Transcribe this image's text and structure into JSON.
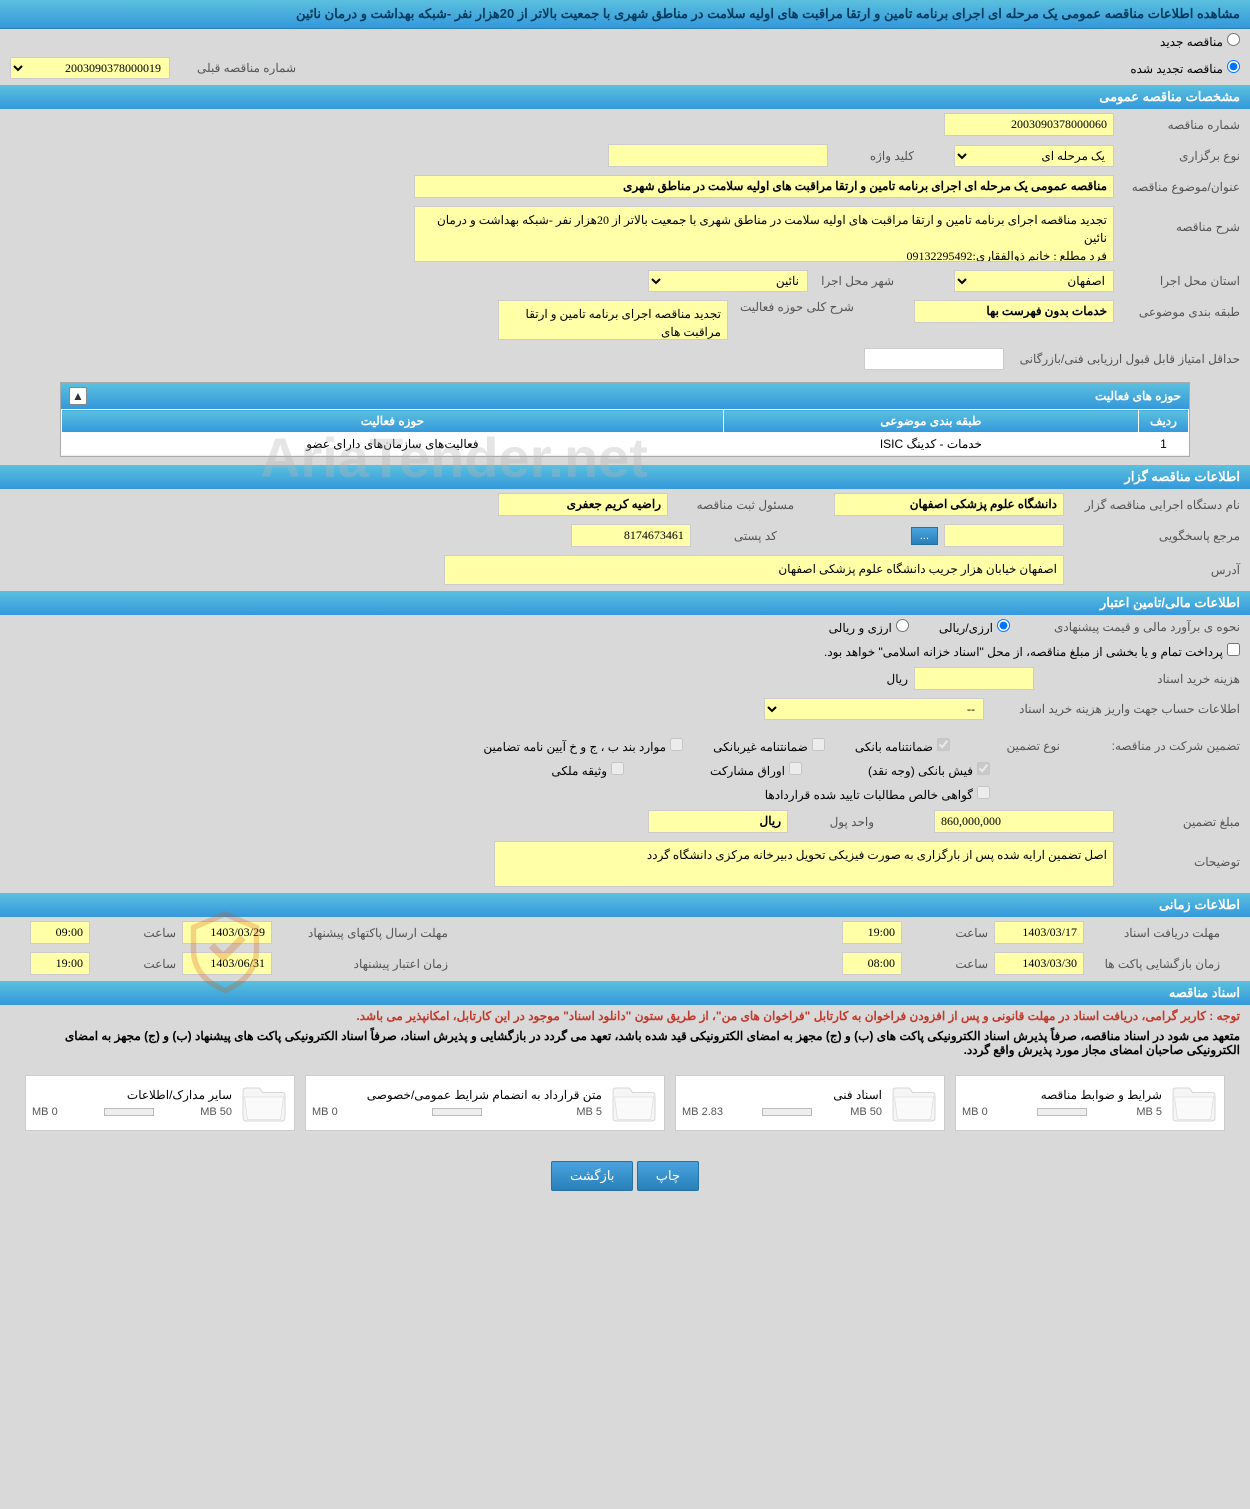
{
  "header_title": "مشاهده اطلاعات مناقصه عمومی یک مرحله ای اجرای برنامه تامین و ارتقا مراقبت های اولیه سلامت در مناطق شهری با جمعیت بالاتر از 20هزار نفر -شبکه بهداشت و درمان نائین",
  "repeat": {
    "new_label": "مناقصه جدید",
    "renewed_label": "مناقصه تجدید شده",
    "prev_label": "شماره مناقصه قبلی",
    "prev_value": "2003090378000019"
  },
  "sections": {
    "general": "مشخصات مناقصه عمومی",
    "tenderer": "اطلاعات مناقصه گزار",
    "finance": "اطلاعات مالی/تامین اعتبار",
    "time": "اطلاعات زمانی",
    "docs": "اسناد مناقصه"
  },
  "general": {
    "tender_no_label": "شماره مناقصه",
    "tender_no": "2003090378000060",
    "hold_type_label": "نوع برگزاری",
    "hold_type": "یک مرحله ای",
    "keyword_label": "کلید واژه",
    "keyword": "",
    "subject_label": "عنوان/موضوع مناقصه",
    "subject": "مناقصه عمومی یک مرحله ای اجرای برنامه تامین و ارتقا مراقبت های اولیه سلامت در مناطق شهری",
    "desc_label": "شرح مناقصه",
    "desc": "تجدید مناقصه اجرای برنامه تامین و ارتقا مراقبت های اولیه سلامت در مناطق شهری با جمعیت بالاتر از 20هزار نفر -شبکه بهداشت و درمان  نائین\nفرد مطلع : خانم ذوالفقاری:09132295492",
    "province_label": "استان محل اجرا",
    "province": "اصفهان",
    "city_label": "شهر محل اجرا",
    "city": "نائین",
    "category_label": "طبقه بندی موضوعی",
    "category": "خدمات بدون فهرست بها",
    "activity_desc_label": "شرح کلی حوزه فعالیت",
    "activity_desc": "تجدید مناقصه اجرای برنامه تامین و ارتقا مراقبت های",
    "min_score_label": "حداقل امتیاز قابل قبول ارزیابی فنی/بازرگانی",
    "min_score": ""
  },
  "activity_table": {
    "title": "حوزه های فعالیت",
    "cols": {
      "row": "ردیف",
      "cat": "طبقه بندی موضوعی",
      "field": "حوزه فعالیت"
    },
    "rows": [
      {
        "n": "1",
        "cat": "خدمات - کدینگ ISIC",
        "field": "فعالیت‌های سازمان‌های دارای عضو"
      }
    ]
  },
  "tenderer": {
    "org_label": "نام دستگاه اجرایی مناقصه گزار",
    "org": "دانشگاه علوم پزشکی اصفهان",
    "resp_person_label": "مسئول ثبت مناقصه",
    "resp_person": "راضیه کریم جعفری",
    "phone_label": "مرجع پاسخگویی",
    "phone": "",
    "postal_label": "کد پستی",
    "postal": "8174673461",
    "address_label": "آدرس",
    "address": "اصفهان خیابان هزار جریب دانشگاه علوم پزشکی اصفهان"
  },
  "finance": {
    "est_method_label": "نحوه ی برآورد مالی و قیمت پیشنهادی",
    "opt_rial": "ارزی/ریالی",
    "opt_arz": "ارزی و ریالی",
    "treasury_label": "پرداخت تمام و یا بخشی از مبلغ مناقصه، از محل \"اسناد خزانه اسلامی\" خواهد بود.",
    "doc_cost_label": "هزینه خرید اسناد",
    "doc_cost": "",
    "unit_rial": "ریال",
    "acct_label": "اطلاعات حساب جهت واریز هزینه خرید اسناد",
    "acct": "--",
    "guarantee_label": "تضمین شرکت در مناقصه:",
    "guarantee_type_label": "نوع تضمین",
    "g_bank": "ضمانتنامه بانکی",
    "g_nonbank": "ضمانتنامه غیربانکی",
    "g_bond": "موارد بند ب ، ج و خ آیین نامه تضامین",
    "g_cash": "فیش بانکی (وجه نقد)",
    "g_stock": "اوراق مشارکت",
    "g_property": "وثیقه ملکی",
    "g_clearance": "گواهی خالص مطالبات تایید شده قراردادها",
    "guarantee_amount_label": "مبلغ تضمین",
    "guarantee_amount": "860,000,000",
    "currency_label": "واحد پول",
    "currency": "ریال",
    "remarks_label": "توضیحات",
    "remarks": "اصل تضمین ارایه شده پس از بارگزاری به صورت فیزیکی تحویل دبیرخانه مرکزی دانشگاه گردد"
  },
  "time": {
    "receive_label": "مهلت دریافت اسناد",
    "receive_date": "1403/03/17",
    "receive_hour_label": "ساعت",
    "receive_hour": "19:00",
    "send_label": "مهلت ارسال پاکتهای پیشنهاد",
    "send_date": "1403/03/29",
    "send_hour_label": "ساعت",
    "send_hour": "09:00",
    "open_label": "زمان بازگشایی پاکت ها",
    "open_date": "1403/03/30",
    "open_hour_label": "ساعت",
    "open_hour": "08:00",
    "valid_label": "زمان اعتبار پیشنهاد",
    "valid_date": "1403/06/31",
    "valid_hour_label": "ساعت",
    "valid_hour": "19:00"
  },
  "docs": {
    "note1": "توجه : کاربر گرامی، دریافت اسناد در مهلت قانونی و پس از افزودن فراخوان به کارتابل \"فراخوان های من\"، از طریق ستون \"دانلود اسناد\" موجود در این کارتابل، امکانپذیر می باشد.",
    "note2": "متعهد می شود در اسناد مناقصه، صرفاً پذیرش اسناد الکترونیکی پاکت های (ب) و (ج) مجهز به امضای الکترونیکی قید شده باشد، تعهد می گردد در بازگشایی و پذیرش اسناد، صرفاً اسناد الکترونیکی پاکت های پیشنهاد (ب) و (ج) مجهز به امضای الکترونیکی صاحبان امضای مجاز مورد پذیرش واقع گردد.",
    "files": [
      {
        "title": "شرایط و ضوابط مناقصه",
        "used": "0 MB",
        "cap": "5 MB",
        "fill": 0
      },
      {
        "title": "اسناد فنی",
        "used": "2.83 MB",
        "cap": "50 MB",
        "fill": 6
      },
      {
        "title": "متن قرارداد به انضمام شرایط عمومی/خصوصی",
        "used": "0 MB",
        "cap": "5 MB",
        "fill": 0
      },
      {
        "title": "سایر مدارک/اطلاعات",
        "used": "0 MB",
        "cap": "50 MB",
        "fill": 0
      }
    ]
  },
  "buttons": {
    "print": "چاپ",
    "back": "بازگشت",
    "dots": "..."
  },
  "watermark": "AriaTender.net",
  "colors": {
    "header_bg": "#3498db",
    "yellow": "#ffffa8"
  }
}
